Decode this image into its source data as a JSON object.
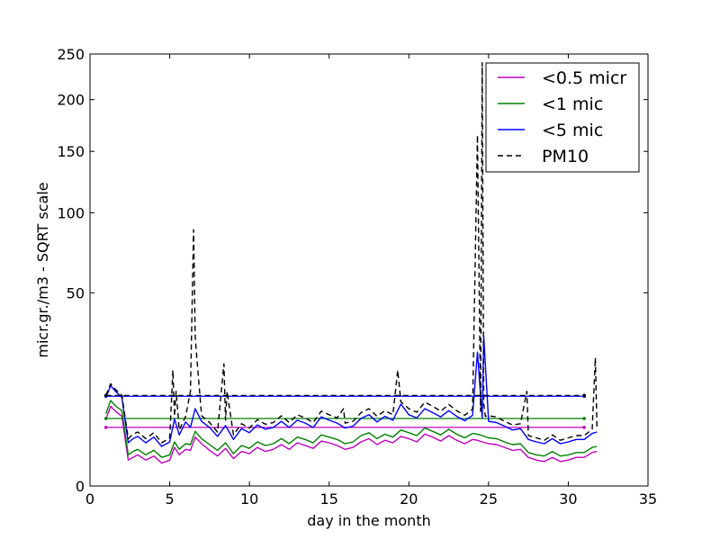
{
  "chart_data": {
    "type": "line",
    "title": "",
    "xlabel": "day in the month",
    "ylabel": "micr.gr./m3 - SQRT scale",
    "xlim": [
      0,
      35
    ],
    "ylim": [
      0,
      250
    ],
    "y_scale": "sqrt",
    "x_ticks": [
      0,
      5,
      10,
      15,
      20,
      25,
      30,
      35
    ],
    "y_ticks": [
      0,
      50,
      100,
      150,
      200,
      250
    ],
    "x_tick_labels": [
      "0",
      "5",
      "10",
      "15",
      "20",
      "25",
      "30",
      "35"
    ],
    "y_tick_labels": [
      "0",
      "50",
      "100",
      "150",
      "200",
      "250"
    ],
    "grid": false,
    "legend_position": "top-right",
    "legend": [
      "<0.5 micr",
      "<1 mic",
      "<5 mic",
      "PM10"
    ],
    "series": [
      {
        "name": "<0.5 micr",
        "color": "#bf00bf",
        "style": "solid",
        "baseline": {
          "x": [
            1.0,
            31.0
          ],
          "y": 4.6
        },
        "x": [
          1.0,
          1.3,
          1.6,
          2.0,
          2.4,
          2.7,
          3.0,
          3.5,
          4.0,
          4.5,
          5.0,
          5.3,
          5.6,
          6.0,
          6.3,
          6.6,
          7.0,
          7.5,
          8.0,
          8.5,
          9.0,
          9.5,
          10.0,
          10.5,
          11.0,
          11.5,
          12.0,
          12.5,
          13.0,
          13.5,
          14.0,
          14.5,
          15.0,
          15.5,
          16.0,
          16.5,
          17.0,
          17.5,
          18.0,
          18.5,
          19.0,
          19.5,
          20.0,
          20.5,
          21.0,
          21.5,
          22.0,
          22.5,
          23.0,
          23.5,
          24.0,
          24.3,
          24.6,
          25.0,
          25.5,
          26.0,
          26.5,
          27.0,
          27.5,
          28.0,
          28.5,
          29.0,
          29.5,
          30.0,
          30.5,
          31.0,
          31.5,
          31.8
        ],
        "y": [
          6.0,
          8.5,
          7.5,
          6.5,
          0.9,
          1.1,
          1.3,
          0.9,
          1.2,
          0.7,
          0.9,
          2.0,
          1.3,
          1.8,
          1.7,
          3.2,
          2.4,
          1.7,
          1.2,
          1.9,
          1.0,
          1.6,
          1.4,
          2.0,
          1.6,
          1.8,
          2.3,
          1.8,
          2.5,
          2.2,
          1.9,
          2.7,
          2.5,
          2.2,
          1.8,
          2.0,
          2.6,
          3.0,
          2.3,
          2.8,
          2.5,
          3.3,
          3.0,
          2.6,
          3.6,
          3.2,
          2.7,
          3.4,
          2.8,
          2.4,
          2.9,
          2.8,
          2.6,
          2.4,
          2.3,
          2.0,
          1.7,
          1.8,
          1.1,
          0.9,
          0.8,
          1.1,
          0.8,
          0.9,
          1.1,
          1.1,
          1.5,
          1.6
        ]
      },
      {
        "name": "<1 mic",
        "color": "#008000",
        "style": "solid",
        "baseline": {
          "x": [
            1.0,
            31.0
          ],
          "y": 6.1
        },
        "x": [
          1.0,
          1.3,
          1.6,
          2.0,
          2.4,
          2.7,
          3.0,
          3.5,
          4.0,
          4.5,
          5.0,
          5.3,
          5.6,
          6.0,
          6.3,
          6.6,
          7.0,
          7.5,
          8.0,
          8.5,
          9.0,
          9.5,
          10.0,
          10.5,
          11.0,
          11.5,
          12.0,
          12.5,
          13.0,
          13.5,
          14.0,
          14.5,
          15.0,
          15.5,
          16.0,
          16.5,
          17.0,
          17.5,
          18.0,
          18.5,
          19.0,
          19.5,
          20.0,
          20.5,
          21.0,
          21.5,
          22.0,
          22.5,
          23.0,
          23.5,
          24.0,
          24.3,
          24.6,
          25.0,
          25.5,
          26.0,
          26.5,
          27.0,
          27.5,
          28.0,
          28.5,
          29.0,
          29.5,
          30.0,
          30.5,
          31.0,
          31.5,
          31.8
        ],
        "y": [
          7.0,
          9.8,
          8.6,
          7.6,
          1.3,
          1.6,
          1.8,
          1.3,
          1.7,
          1.1,
          1.3,
          2.6,
          1.8,
          2.4,
          2.3,
          4.0,
          3.0,
          2.3,
          1.7,
          2.5,
          1.4,
          2.2,
          1.9,
          2.6,
          2.2,
          2.4,
          3.0,
          2.4,
          3.2,
          2.9,
          2.5,
          3.5,
          3.2,
          2.9,
          2.4,
          2.6,
          3.4,
          3.8,
          3.0,
          3.6,
          3.2,
          4.2,
          3.8,
          3.4,
          4.5,
          4.0,
          3.5,
          4.3,
          3.6,
          3.1,
          3.7,
          3.6,
          3.4,
          3.1,
          3.0,
          2.6,
          2.3,
          2.4,
          1.5,
          1.3,
          1.2,
          1.6,
          1.2,
          1.3,
          1.5,
          1.5,
          2.0,
          2.1
        ]
      },
      {
        "name": "<5 mic",
        "color": "#0000ff",
        "style": "solid",
        "baseline": {
          "x": [
            1.0,
            31.0
          ],
          "y": 10.8
        },
        "x": [
          1.0,
          1.3,
          1.6,
          2.0,
          2.4,
          2.7,
          3.0,
          3.5,
          4.0,
          4.5,
          5.0,
          5.3,
          5.6,
          6.0,
          6.3,
          6.6,
          7.0,
          7.5,
          8.0,
          8.5,
          9.0,
          9.5,
          10.0,
          10.5,
          11.0,
          11.5,
          12.0,
          12.5,
          13.0,
          13.5,
          14.0,
          14.5,
          15.0,
          15.5,
          16.0,
          16.5,
          17.0,
          17.5,
          18.0,
          18.5,
          19.0,
          19.5,
          20.0,
          20.5,
          21.0,
          21.5,
          22.0,
          22.5,
          23.0,
          23.5,
          24.0,
          24.3,
          24.6,
          24.7,
          25.0,
          25.5,
          26.0,
          26.5,
          27.0,
          27.5,
          28.0,
          28.5,
          29.0,
          29.5,
          30.0,
          30.5,
          31.0,
          31.5,
          31.8
        ],
        "y": [
          10.5,
          13.5,
          12.0,
          10.5,
          2.5,
          3.0,
          3.3,
          2.5,
          3.2,
          2.1,
          2.6,
          6.0,
          3.5,
          5.5,
          4.6,
          8.0,
          5.6,
          4.6,
          3.3,
          4.9,
          2.9,
          4.4,
          3.8,
          5.0,
          4.3,
          4.6,
          5.6,
          4.6,
          5.8,
          5.3,
          4.6,
          6.4,
          5.8,
          5.3,
          4.5,
          4.8,
          6.1,
          6.8,
          5.5,
          6.5,
          5.8,
          9.0,
          6.8,
          6.2,
          8.0,
          7.2,
          6.4,
          7.6,
          6.5,
          5.7,
          6.7,
          24.0,
          6.2,
          30.0,
          5.6,
          5.4,
          4.8,
          4.2,
          4.4,
          2.9,
          2.6,
          2.4,
          3.0,
          2.4,
          2.6,
          2.9,
          2.9,
          3.7,
          3.9
        ]
      },
      {
        "name": "PM10",
        "color": "#000000",
        "style": "dashed",
        "baseline": {
          "x": [
            1.0,
            31.0
          ],
          "y": 11.0
        },
        "x": [
          1.0,
          1.3,
          1.6,
          2.0,
          2.4,
          2.7,
          3.0,
          3.5,
          4.0,
          4.5,
          5.0,
          5.2,
          5.3,
          5.4,
          5.6,
          6.0,
          6.3,
          6.5,
          6.6,
          6.7,
          7.0,
          7.5,
          8.0,
          8.4,
          8.5,
          8.6,
          9.0,
          9.5,
          10.0,
          10.5,
          11.0,
          11.5,
          12.0,
          12.5,
          13.0,
          13.5,
          14.0,
          14.5,
          15.0,
          15.5,
          15.9,
          16.0,
          16.5,
          17.0,
          17.5,
          18.0,
          18.5,
          19.0,
          19.3,
          19.5,
          20.0,
          20.5,
          21.0,
          21.5,
          22.0,
          22.5,
          23.0,
          23.5,
          24.0,
          24.3,
          24.5,
          24.6,
          24.7,
          24.8,
          25.0,
          25.5,
          26.0,
          26.5,
          27.0,
          27.4,
          27.5,
          28.0,
          28.5,
          29.0,
          29.5,
          30.0,
          30.5,
          31.0,
          31.5,
          31.7,
          31.8
        ],
        "y": [
          11.0,
          14.0,
          12.5,
          11.0,
          3.0,
          3.6,
          3.9,
          3.0,
          3.8,
          2.5,
          3.1,
          18.0,
          6.5,
          12.0,
          4.2,
          6.5,
          12.0,
          88.0,
          30.0,
          22.0,
          6.6,
          5.4,
          3.9,
          20.0,
          5.8,
          12.0,
          3.5,
          5.2,
          4.5,
          5.9,
          5.1,
          5.4,
          6.6,
          5.4,
          6.8,
          6.2,
          5.4,
          7.5,
          6.8,
          6.2,
          8.0,
          5.3,
          5.6,
          7.2,
          8.0,
          6.5,
          7.6,
          6.8,
          18.0,
          9.5,
          8.0,
          7.3,
          9.4,
          8.5,
          7.5,
          8.9,
          7.6,
          6.7,
          7.9,
          165.0,
          7.5,
          240.0,
          9.0,
          6.5,
          6.6,
          6.4,
          5.6,
          5.0,
          5.2,
          12.0,
          3.4,
          3.1,
          2.8,
          3.5,
          2.8,
          3.1,
          3.4,
          3.4,
          4.3,
          22.0,
          4.6
        ]
      }
    ]
  }
}
